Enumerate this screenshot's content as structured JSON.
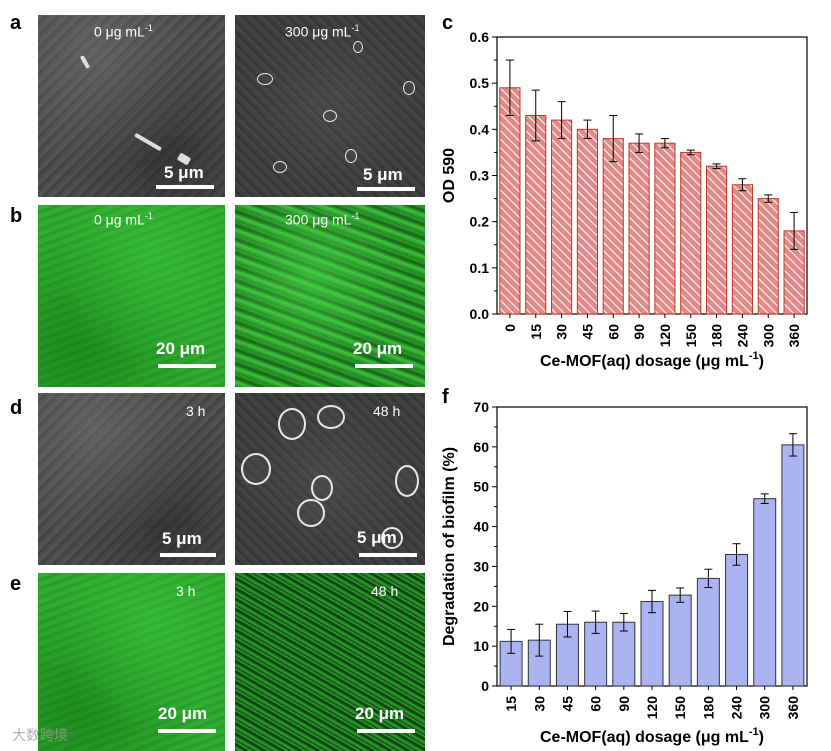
{
  "panels": {
    "a": {
      "letter": "a",
      "left_label": "0 μg mL",
      "left_sup": "-1",
      "right_label": "300 μg mL",
      "right_sup": "-1",
      "scale": "5 μm"
    },
    "b": {
      "letter": "b",
      "left_label": "0 μg mL",
      "left_sup": "-1",
      "right_label": "300 μg mL",
      "right_sup": "-1",
      "scale": "20 μm"
    },
    "d": {
      "letter": "d",
      "left_label": "3 h",
      "right_label": "48 h",
      "scale": "5 μm"
    },
    "e": {
      "letter": "e",
      "left_label": "3 h",
      "right_label": "48 h",
      "scale": "20 μm"
    },
    "c": {
      "letter": "c"
    },
    "f": {
      "letter": "f"
    }
  },
  "watermark": "大数跨境",
  "colors": {
    "bar_c_fill": "#e8a0a0",
    "bar_c_stroke": "#c0392b",
    "bar_f_fill": "#a9b4f0",
    "bar_f_stroke": "#333333"
  },
  "chart_data": [
    {
      "type": "bar",
      "panel": "c",
      "title": "",
      "xlabel": "Ce-MOF(aq) dosage (μg mL",
      "xlabel_sup": "-1",
      "xlabel_tail": ")",
      "ylabel": "OD 590",
      "ylim": [
        0.0,
        0.6
      ],
      "yticks": [
        "0.0",
        "0.1",
        "0.2",
        "0.3",
        "0.4",
        "0.5",
        "0.6"
      ],
      "yticks_val": [
        0.0,
        0.1,
        0.2,
        0.3,
        0.4,
        0.5,
        0.6
      ],
      "categories": [
        "0",
        "15",
        "30",
        "45",
        "60",
        "90",
        "120",
        "150",
        "180",
        "240",
        "300",
        "360"
      ],
      "values": [
        0.49,
        0.43,
        0.42,
        0.4,
        0.38,
        0.37,
        0.37,
        0.35,
        0.32,
        0.28,
        0.25,
        0.18
      ],
      "errors": [
        0.06,
        0.055,
        0.04,
        0.02,
        0.05,
        0.02,
        0.01,
        0.005,
        0.005,
        0.013,
        0.008,
        0.04
      ],
      "pattern": "hatched"
    },
    {
      "type": "bar",
      "panel": "f",
      "title": "",
      "xlabel": "Ce-MOF(aq) dosage (μg mL",
      "xlabel_sup": "-1",
      "xlabel_tail": ")",
      "ylabel": "Degradation of biofilm (%)",
      "ylim": [
        0,
        70
      ],
      "yticks": [
        "0",
        "10",
        "20",
        "30",
        "40",
        "50",
        "60",
        "70"
      ],
      "yticks_val": [
        0,
        10,
        20,
        30,
        40,
        50,
        60,
        70
      ],
      "categories": [
        "15",
        "30",
        "45",
        "60",
        "90",
        "120",
        "150",
        "180",
        "240",
        "300",
        "360"
      ],
      "values": [
        11.2,
        11.5,
        15.5,
        16.0,
        16.0,
        21.2,
        22.8,
        27.0,
        33.0,
        47.0,
        60.5
      ],
      "errors": [
        3.0,
        4.0,
        3.2,
        2.8,
        2.2,
        2.8,
        1.8,
        2.3,
        2.7,
        1.2,
        2.8
      ],
      "pattern": "solid"
    }
  ]
}
